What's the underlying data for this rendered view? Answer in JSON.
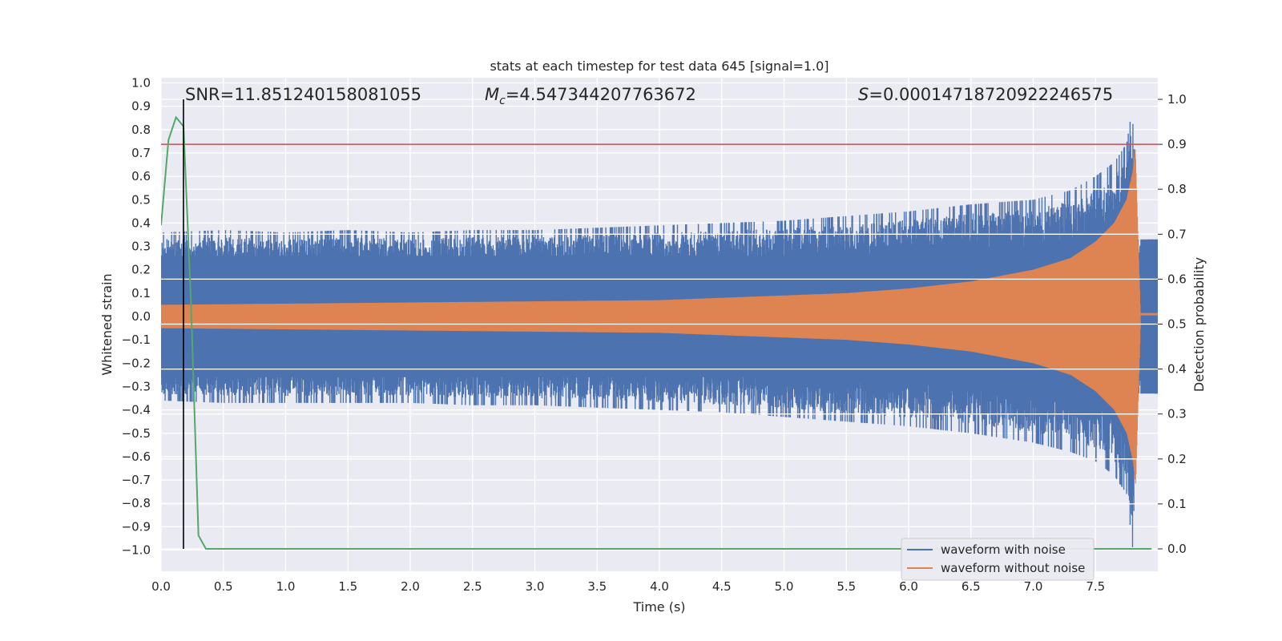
{
  "chart_data": {
    "type": "line",
    "title": "stats at each timestep for test data 645 [signal=1.0]",
    "xlabel": "Time (s)",
    "ylabel": "Whitened strain",
    "y2label": "Detection probability",
    "xlim": [
      0.0,
      8.0
    ],
    "ylim": [
      -1.09,
      1.0
    ],
    "y2lim": [
      -0.05,
      1.045
    ],
    "x_ticks": [
      "0.0",
      "0.5",
      "1.0",
      "1.5",
      "2.0",
      "2.5",
      "3.0",
      "3.5",
      "4.0",
      "4.5",
      "5.0",
      "5.5",
      "6.0",
      "6.5",
      "7.0",
      "7.5"
    ],
    "y_ticks": [
      "1.0",
      "0.9",
      "0.8",
      "0.7",
      "0.6",
      "0.5",
      "0.4",
      "0.3",
      "0.2",
      "0.1",
      "0.0",
      "−0.1",
      "−0.2",
      "−0.3",
      "−0.4",
      "−0.5",
      "−0.6",
      "−0.7",
      "−0.8",
      "−0.9",
      "−1.0"
    ],
    "y2_ticks": [
      "1.0",
      "0.9",
      "0.8",
      "0.7",
      "0.6",
      "0.5",
      "0.4",
      "0.3",
      "0.2",
      "0.1",
      "0.0"
    ],
    "grid": true,
    "legend": "bottom-right",
    "annotations": {
      "snr": "SNR=11.851240158081055",
      "mc_symbol": "M",
      "mc_sub": "c",
      "mc_value": "=4.547344207763672",
      "s_symbol": "S",
      "s_value": "=0.00014718720922246575"
    },
    "series": [
      {
        "name": "waveform with noise",
        "axis": "left",
        "color": "#4c72b0",
        "envelope": {
          "x": [
            0,
            0.5,
            1,
            1.5,
            2,
            2.5,
            3,
            3.5,
            4,
            4.5,
            5,
            5.5,
            6,
            6.5,
            7,
            7.3,
            7.5,
            7.65,
            7.75,
            7.8,
            7.83,
            7.86,
            8.0
          ],
          "upper": [
            0.36,
            0.37,
            0.36,
            0.37,
            0.36,
            0.37,
            0.37,
            0.38,
            0.39,
            0.4,
            0.41,
            0.43,
            0.45,
            0.48,
            0.5,
            0.54,
            0.6,
            0.66,
            0.74,
            0.91,
            0.33,
            0.33,
            0.33
          ],
          "lower": [
            -0.36,
            -0.37,
            -0.37,
            -0.37,
            -0.37,
            -0.38,
            -0.38,
            -0.39,
            -0.4,
            -0.41,
            -0.43,
            -0.45,
            -0.47,
            -0.5,
            -0.54,
            -0.58,
            -0.62,
            -0.68,
            -0.76,
            -1.0,
            -0.33,
            -0.33,
            -0.33
          ]
        }
      },
      {
        "name": "waveform without noise",
        "axis": "left",
        "color": "#dd8452",
        "envelope": {
          "x": [
            0,
            1,
            2,
            3,
            4,
            5,
            5.5,
            6,
            6.5,
            7,
            7.3,
            7.5,
            7.65,
            7.75,
            7.8,
            7.82,
            7.86,
            8.0
          ],
          "amplitude": [
            0.05,
            0.055,
            0.06,
            0.065,
            0.07,
            0.09,
            0.1,
            0.12,
            0.15,
            0.2,
            0.25,
            0.32,
            0.4,
            0.5,
            0.62,
            0.72,
            0.01,
            0.01
          ]
        }
      },
      {
        "name": "detection probability",
        "axis": "right",
        "color": "#55a868",
        "x": [
          0.0,
          0.06,
          0.12,
          0.18,
          0.24,
          0.3,
          0.36,
          0.5,
          1.0,
          2.0,
          3.0,
          4.0,
          5.0,
          6.0,
          7.0,
          7.8,
          7.95
        ],
        "y": [
          0.72,
          0.91,
          0.96,
          0.94,
          0.55,
          0.03,
          0.0,
          0.0,
          0.0,
          0.0,
          0.0,
          0.0,
          0.0,
          0.0,
          0.0,
          0.0,
          0.0
        ]
      }
    ],
    "threshold": {
      "axis": "right",
      "y": 0.9,
      "color": "#c44e52"
    },
    "marker_line": {
      "x": 0.18,
      "color": "#000000"
    }
  }
}
